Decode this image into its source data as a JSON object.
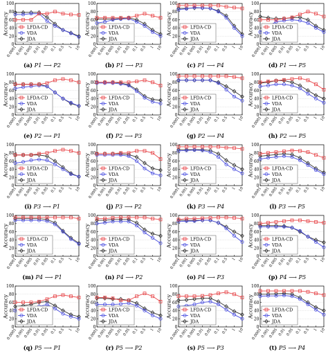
{
  "figure": {
    "ylabel": "Accuracy",
    "y_ticks": [
      "100",
      "80",
      "60",
      "40",
      "20",
      "0"
    ],
    "x_ticks": [
      "0.0001",
      "0.001",
      "0.005",
      "0.01",
      "0.05",
      "0.1",
      "0.5",
      "1",
      "10"
    ],
    "legend": [
      "LFDA-CD",
      "VDA",
      "JDA"
    ],
    "colors": {
      "LFDA-CD": "#e8474a",
      "VDA": "#4a4ee0",
      "JDA": "#333333",
      "axis": "#000000"
    },
    "markers": {
      "LFDA-CD": "square",
      "VDA": "circle",
      "JDA": "diamond"
    }
  },
  "chart_data": [
    {
      "caption_tag": "(a)",
      "caption_pair": "P1 ⟶ P2",
      "type": "line",
      "ylim": [
        0,
        100
      ],
      "series": [
        {
          "name": "LFDA-CD",
          "values": [
            60,
            60,
            60,
            75,
            75,
            80,
            75,
            73,
            72
          ]
        },
        {
          "name": "VDA",
          "values": [
            73,
            73,
            75,
            75,
            57,
            45,
            35,
            27,
            18
          ]
        },
        {
          "name": "JDA",
          "values": [
            78,
            78,
            78,
            78,
            66,
            50,
            35,
            28,
            20
          ]
        }
      ]
    },
    {
      "caption_tag": "(b)",
      "caption_pair": "P1 ⟶ P3",
      "type": "line",
      "ylim": [
        0,
        100
      ],
      "series": [
        {
          "name": "LFDA-CD",
          "values": [
            65,
            65,
            65,
            65,
            65,
            70,
            75,
            70,
            65
          ]
        },
        {
          "name": "VDA",
          "values": [
            52,
            55,
            60,
            62,
            63,
            55,
            45,
            30,
            20
          ]
        },
        {
          "name": "JDA",
          "values": [
            62,
            62,
            62,
            63,
            65,
            60,
            50,
            35,
            25
          ]
        }
      ]
    },
    {
      "caption_tag": "(c)",
      "caption_pair": "P1 ⟶ P4",
      "type": "line",
      "ylim": [
        0,
        100
      ],
      "series": [
        {
          "name": "LFDA-CD",
          "values": [
            95,
            95,
            95,
            95,
            95,
            95,
            92,
            90,
            88
          ]
        },
        {
          "name": "VDA",
          "values": [
            85,
            87,
            90,
            89,
            88,
            80,
            65,
            40,
            20
          ]
        },
        {
          "name": "JDA",
          "values": [
            88,
            88,
            89,
            89,
            88,
            82,
            70,
            45,
            25
          ]
        }
      ]
    },
    {
      "caption_tag": "(d)",
      "caption_pair": "P1 ⟶ P5",
      "type": "line",
      "ylim": [
        0,
        100
      ],
      "series": [
        {
          "name": "LFDA-CD",
          "values": [
            60,
            60,
            60,
            63,
            66,
            73,
            80,
            75,
            68
          ]
        },
        {
          "name": "VDA",
          "values": [
            30,
            45,
            55,
            58,
            60,
            58,
            52,
            40,
            30
          ]
        },
        {
          "name": "JDA",
          "values": [
            68,
            65,
            63,
            63,
            65,
            66,
            60,
            45,
            35
          ]
        }
      ]
    },
    {
      "caption_tag": "(e)",
      "caption_pair": "P2 ⟶ P1",
      "type": "line",
      "ylim": [
        0,
        100
      ],
      "series": [
        {
          "name": "LFDA-CD",
          "values": [
            75,
            75,
            75,
            75,
            78,
            85,
            88,
            85,
            80
          ]
        },
        {
          "name": "VDA",
          "values": [
            65,
            68,
            70,
            72,
            70,
            55,
            40,
            30,
            22
          ]
        },
        {
          "name": "JDA",
          "values": [
            75,
            75,
            75,
            75,
            70,
            55,
            40,
            28,
            22
          ]
        }
      ]
    },
    {
      "caption_tag": "(f)",
      "caption_pair": "P2 ⟶ P3",
      "type": "line",
      "ylim": [
        0,
        100
      ],
      "series": [
        {
          "name": "LFDA-CD",
          "values": [
            80,
            80,
            80,
            80,
            80,
            82,
            85,
            80,
            72
          ]
        },
        {
          "name": "VDA",
          "values": [
            78,
            78,
            78,
            76,
            72,
            58,
            42,
            32,
            28
          ]
        },
        {
          "name": "JDA",
          "values": [
            80,
            80,
            80,
            78,
            74,
            62,
            46,
            38,
            36
          ]
        }
      ]
    },
    {
      "caption_tag": "(g)",
      "caption_pair": "P2 ⟶ P4",
      "type": "line",
      "ylim": [
        0,
        100
      ],
      "series": [
        {
          "name": "LFDA-CD",
          "values": [
            95,
            95,
            95,
            95,
            95,
            95,
            95,
            93,
            90
          ]
        },
        {
          "name": "VDA",
          "values": [
            85,
            85,
            85,
            85,
            85,
            78,
            62,
            45,
            35
          ]
        },
        {
          "name": "JDA",
          "values": [
            85,
            85,
            85,
            85,
            85,
            80,
            70,
            58,
            45
          ]
        }
      ]
    },
    {
      "caption_tag": "(h)",
      "caption_pair": "P2 ⟶ P5",
      "type": "line",
      "ylim": [
        0,
        100
      ],
      "series": [
        {
          "name": "LFDA-CD",
          "values": [
            80,
            82,
            84,
            86,
            88,
            90,
            85,
            75,
            62
          ]
        },
        {
          "name": "VDA",
          "values": [
            70,
            72,
            75,
            75,
            72,
            65,
            52,
            40,
            30
          ]
        },
        {
          "name": "JDA",
          "values": [
            78,
            80,
            84,
            84,
            80,
            72,
            60,
            48,
            40
          ]
        }
      ]
    },
    {
      "caption_tag": "(i)",
      "caption_pair": "P3 ⟶ P1",
      "type": "line",
      "ylim": [
        0,
        100
      ],
      "series": [
        {
          "name": "LFDA-CD",
          "values": [
            75,
            75,
            75,
            78,
            80,
            85,
            88,
            85,
            80
          ]
        },
        {
          "name": "VDA",
          "values": [
            55,
            58,
            62,
            64,
            62,
            52,
            40,
            28,
            22
          ]
        },
        {
          "name": "JDA",
          "values": [
            75,
            75,
            75,
            75,
            72,
            60,
            45,
            30,
            22
          ]
        }
      ]
    },
    {
      "caption_tag": "(j)",
      "caption_pair": "P3 ⟶ P2",
      "type": "line",
      "ylim": [
        0,
        100
      ],
      "series": [
        {
          "name": "LFDA-CD",
          "values": [
            78,
            78,
            78,
            80,
            80,
            85,
            85,
            80,
            65
          ]
        },
        {
          "name": "VDA",
          "values": [
            75,
            75,
            75,
            75,
            72,
            60,
            42,
            30,
            25
          ]
        },
        {
          "name": "JDA",
          "values": [
            78,
            78,
            78,
            78,
            76,
            70,
            55,
            42,
            38
          ]
        }
      ]
    },
    {
      "caption_tag": "(k)",
      "caption_pair": "P3 ⟶ P4",
      "type": "line",
      "ylim": [
        0,
        100
      ],
      "series": [
        {
          "name": "LFDA-CD",
          "values": [
            95,
            95,
            95,
            95,
            95,
            95,
            93,
            92,
            90
          ]
        },
        {
          "name": "VDA",
          "values": [
            85,
            86,
            87,
            86,
            82,
            70,
            52,
            40,
            30
          ]
        },
        {
          "name": "JDA",
          "values": [
            88,
            88,
            88,
            88,
            86,
            78,
            62,
            50,
            40
          ]
        }
      ]
    },
    {
      "caption_tag": "(l)",
      "caption_pair": "P3 ⟶ P5",
      "type": "line",
      "ylim": [
        0,
        100
      ],
      "series": [
        {
          "name": "LFDA-CD",
          "values": [
            78,
            80,
            82,
            84,
            86,
            85,
            82,
            75,
            68
          ]
        },
        {
          "name": "VDA",
          "values": [
            65,
            68,
            70,
            72,
            70,
            62,
            50,
            38,
            28
          ]
        },
        {
          "name": "JDA",
          "values": [
            72,
            74,
            76,
            78,
            76,
            68,
            55,
            42,
            32
          ]
        }
      ]
    },
    {
      "caption_tag": "(m)",
      "caption_pair": "P4 ⟶ P1",
      "type": "line",
      "ylim": [
        0,
        100
      ],
      "series": [
        {
          "name": "LFDA-CD",
          "values": [
            95,
            95,
            95,
            95,
            95,
            95,
            95,
            95,
            92
          ]
        },
        {
          "name": "VDA",
          "values": [
            88,
            88,
            88,
            88,
            86,
            78,
            60,
            42,
            30
          ]
        },
        {
          "name": "JDA",
          "values": [
            92,
            92,
            92,
            92,
            90,
            82,
            62,
            45,
            32
          ]
        }
      ]
    },
    {
      "caption_tag": "(n)",
      "caption_pair": "P4 ⟶ P2",
      "type": "line",
      "ylim": [
        0,
        100
      ],
      "series": [
        {
          "name": "LFDA-CD",
          "values": [
            92,
            92,
            94,
            95,
            95,
            95,
            95,
            92,
            90
          ]
        },
        {
          "name": "VDA",
          "values": [
            80,
            82,
            85,
            85,
            85,
            75,
            58,
            45,
            32
          ]
        },
        {
          "name": "JDA",
          "values": [
            88,
            88,
            90,
            90,
            90,
            82,
            65,
            55,
            50
          ]
        }
      ]
    },
    {
      "caption_tag": "(o)",
      "caption_pair": "P4 ⟶ P3",
      "type": "line",
      "ylim": [
        0,
        100
      ],
      "series": [
        {
          "name": "LFDA-CD",
          "values": [
            90,
            92,
            92,
            93,
            94,
            95,
            95,
            94,
            92
          ]
        },
        {
          "name": "VDA",
          "values": [
            85,
            86,
            86,
            88,
            88,
            82,
            68,
            50,
            35
          ]
        },
        {
          "name": "JDA",
          "values": [
            88,
            88,
            88,
            88,
            88,
            82,
            72,
            60,
            50
          ]
        }
      ]
    },
    {
      "caption_tag": "(p)",
      "caption_pair": "P4 ⟶ P5",
      "type": "line",
      "ylim": [
        0,
        100
      ],
      "series": [
        {
          "name": "LFDA-CD",
          "values": [
            80,
            82,
            84,
            86,
            88,
            88,
            86,
            84,
            82
          ]
        },
        {
          "name": "VDA",
          "values": [
            72,
            72,
            72,
            72,
            70,
            62,
            48,
            35,
            22
          ]
        },
        {
          "name": "JDA",
          "values": [
            75,
            75,
            75,
            74,
            70,
            60,
            48,
            40,
            34
          ]
        }
      ]
    },
    {
      "caption_tag": "(q)",
      "caption_pair": "P5 ⟶ P1",
      "type": "line",
      "ylim": [
        0,
        100
      ],
      "series": [
        {
          "name": "LFDA-CD",
          "values": [
            60,
            60,
            60,
            62,
            68,
            75,
            78,
            75,
            72
          ]
        },
        {
          "name": "VDA",
          "values": [
            40,
            42,
            45,
            50,
            55,
            45,
            32,
            25,
            20
          ]
        },
        {
          "name": "JDA",
          "values": [
            50,
            52,
            55,
            60,
            62,
            52,
            40,
            30,
            25
          ]
        }
      ]
    },
    {
      "caption_tag": "(r)",
      "caption_pair": "P5 ⟶ P2",
      "type": "line",
      "ylim": [
        0,
        100
      ],
      "series": [
        {
          "name": "LFDA-CD",
          "values": [
            72,
            72,
            70,
            65,
            65,
            75,
            82,
            75,
            62
          ]
        },
        {
          "name": "VDA",
          "values": [
            55,
            55,
            55,
            56,
            58,
            52,
            40,
            28,
            20
          ]
        },
        {
          "name": "JDA",
          "values": [
            70,
            70,
            68,
            68,
            65,
            58,
            45,
            35,
            28
          ]
        }
      ]
    },
    {
      "caption_tag": "(s)",
      "caption_pair": "P5 ⟶ P3",
      "type": "line",
      "ylim": [
        0,
        100
      ],
      "series": [
        {
          "name": "LFDA-CD",
          "values": [
            75,
            75,
            75,
            76,
            78,
            82,
            85,
            80,
            72
          ]
        },
        {
          "name": "VDA",
          "values": [
            50,
            52,
            55,
            60,
            62,
            55,
            42,
            30,
            20
          ]
        },
        {
          "name": "JDA",
          "values": [
            65,
            66,
            68,
            70,
            70,
            62,
            50,
            38,
            30
          ]
        }
      ]
    },
    {
      "caption_tag": "(t)",
      "caption_pair": "P5 ⟶ P4",
      "type": "line",
      "ylim": [
        0,
        100
      ],
      "series": [
        {
          "name": "LFDA-CD",
          "values": [
            88,
            88,
            88,
            88,
            88,
            88,
            86,
            82,
            78
          ]
        },
        {
          "name": "VDA",
          "values": [
            75,
            76,
            76,
            77,
            75,
            68,
            55,
            42,
            30
          ]
        },
        {
          "name": "JDA",
          "values": [
            80,
            80,
            81,
            82,
            80,
            72,
            60,
            48,
            40
          ]
        }
      ]
    }
  ]
}
